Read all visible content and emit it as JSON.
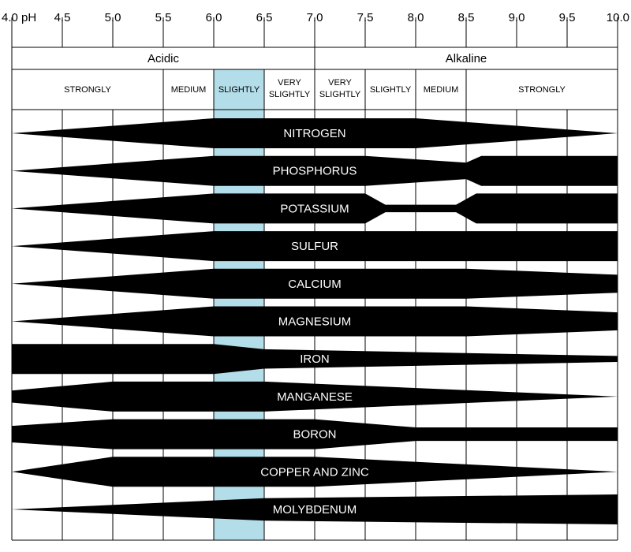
{
  "chart_data": {
    "type": "bar",
    "title": "",
    "xlabel": "",
    "ylabel": "",
    "x_axis": {
      "range": [
        4.0,
        10.0
      ],
      "first_tick_label": "4.0 pH",
      "ticks": [
        4.0,
        4.5,
        5.0,
        5.5,
        6.0,
        6.5,
        7.0,
        7.5,
        8.0,
        8.5,
        9.0,
        9.5,
        10.0
      ],
      "tick_labels": [
        "4.0 pH",
        "4.5",
        "5.0",
        "5.5",
        "6.0",
        "6.5",
        "7.0",
        "7.5",
        "8.0",
        "8.5",
        "9.0",
        "9.5",
        "10.0"
      ]
    },
    "ranges": [
      {
        "label": "Acidic",
        "from": 4.0,
        "to": 7.0
      },
      {
        "label": "Alkaline",
        "from": 7.0,
        "to": 10.0
      }
    ],
    "zones": [
      {
        "lines": [
          "STRONGLY"
        ],
        "from": 4.0,
        "to": 5.5
      },
      {
        "lines": [
          "MEDIUM"
        ],
        "from": 5.5,
        "to": 6.0
      },
      {
        "lines": [
          "SLIGHTLY"
        ],
        "from": 6.0,
        "to": 6.5
      },
      {
        "lines": [
          "VERY",
          "SLIGHTLY"
        ],
        "from": 6.5,
        "to": 7.0
      },
      {
        "lines": [
          "VERY",
          "SLIGHTLY"
        ],
        "from": 7.0,
        "to": 7.5
      },
      {
        "lines": [
          "SLIGHTLY"
        ],
        "from": 7.5,
        "to": 8.0
      },
      {
        "lines": [
          "MEDIUM"
        ],
        "from": 8.0,
        "to": 8.5
      },
      {
        "lines": [
          "STRONGLY"
        ],
        "from": 8.5,
        "to": 10.0
      }
    ],
    "highlight": {
      "from": 6.0,
      "to": 6.5,
      "color": "#b3dde8"
    },
    "band_color": "#000000",
    "label_color": "#ffffff",
    "series": [
      {
        "name": "NITROGEN",
        "label_ph": 7.0,
        "profile": [
          [
            4.0,
            0.0
          ],
          [
            6.0,
            1.0
          ],
          [
            8.0,
            1.0
          ],
          [
            10.0,
            0.0
          ]
        ]
      },
      {
        "name": "PHOSPHORUS",
        "label_ph": 7.0,
        "profile": [
          [
            4.0,
            0.0
          ],
          [
            6.0,
            1.0
          ],
          [
            7.5,
            1.0
          ],
          [
            8.5,
            0.55
          ],
          [
            8.65,
            1.0
          ],
          [
            10.0,
            1.0
          ]
        ]
      },
      {
        "name": "POTASSIUM",
        "label_ph": 7.0,
        "profile": [
          [
            4.0,
            0.0
          ],
          [
            6.0,
            1.0
          ],
          [
            7.5,
            1.0
          ],
          [
            7.7,
            0.25
          ],
          [
            8.4,
            0.25
          ],
          [
            8.6,
            1.0
          ],
          [
            10.0,
            1.0
          ]
        ]
      },
      {
        "name": "SULFUR",
        "label_ph": 7.0,
        "profile": [
          [
            4.0,
            0.0
          ],
          [
            6.0,
            1.0
          ],
          [
            10.0,
            1.0
          ]
        ]
      },
      {
        "name": "CALCIUM",
        "label_ph": 7.0,
        "profile": [
          [
            4.0,
            0.0
          ],
          [
            6.0,
            1.0
          ],
          [
            8.5,
            1.0
          ],
          [
            10.0,
            0.6
          ]
        ]
      },
      {
        "name": "MAGNESIUM",
        "label_ph": 7.0,
        "profile": [
          [
            4.0,
            0.0
          ],
          [
            6.0,
            1.0
          ],
          [
            8.5,
            1.0
          ],
          [
            10.0,
            0.6
          ]
        ]
      },
      {
        "name": "IRON",
        "label_ph": 7.0,
        "profile": [
          [
            4.0,
            1.0
          ],
          [
            6.0,
            1.0
          ],
          [
            6.5,
            0.65
          ],
          [
            10.0,
            0.2
          ]
        ]
      },
      {
        "name": "MANGANESE",
        "label_ph": 7.0,
        "profile": [
          [
            4.0,
            0.4
          ],
          [
            5.0,
            1.0
          ],
          [
            6.5,
            1.0
          ],
          [
            10.0,
            0.0
          ]
        ]
      },
      {
        "name": "BORON",
        "label_ph": 7.0,
        "profile": [
          [
            4.0,
            0.55
          ],
          [
            5.0,
            1.0
          ],
          [
            7.0,
            1.0
          ],
          [
            8.0,
            0.45
          ],
          [
            10.0,
            0.45
          ]
        ]
      },
      {
        "name": "COPPER AND ZINC",
        "label_ph": 7.0,
        "profile": [
          [
            4.0,
            0.0
          ],
          [
            5.0,
            1.0
          ],
          [
            7.0,
            1.0
          ],
          [
            10.0,
            0.0
          ]
        ]
      },
      {
        "name": "MOLYBDENUM",
        "label_ph": 7.0,
        "profile": [
          [
            4.0,
            0.0
          ],
          [
            6.5,
            0.75
          ],
          [
            10.0,
            1.0
          ]
        ]
      }
    ]
  }
}
